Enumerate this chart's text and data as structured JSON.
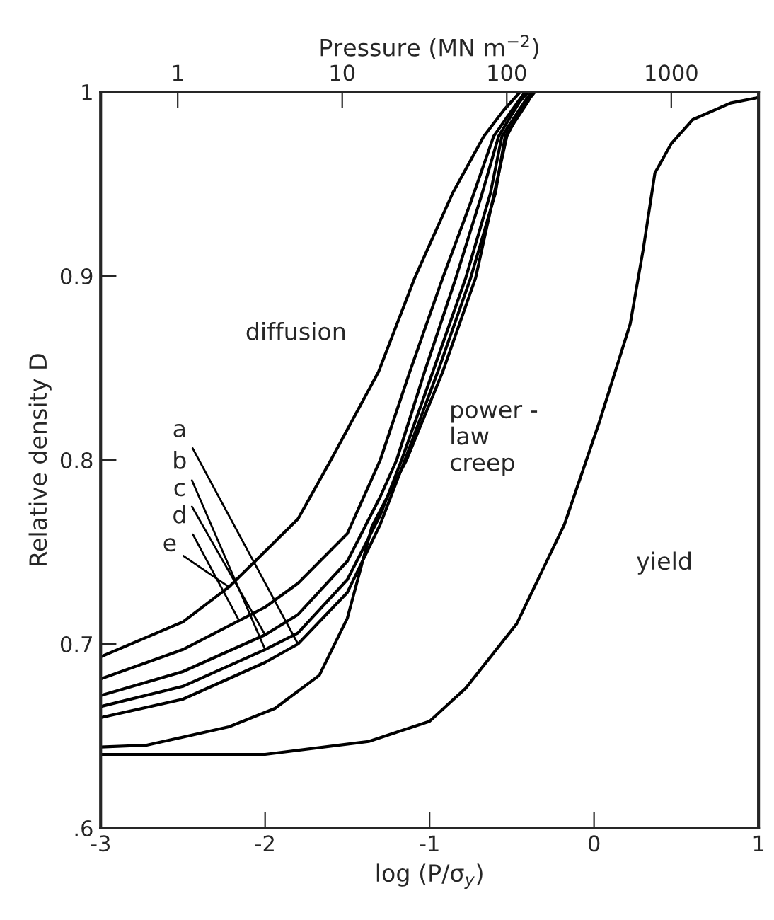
{
  "chart_data": {
    "type": "line",
    "xlabel": "log (P/σ$_{y}$)",
    "ylabel": "Relative density D",
    "x2label": "Pressure (MN m$^{−2}$)",
    "xlim": [
      -3,
      1
    ],
    "xticks": [
      -3,
      -2,
      -1,
      0,
      1
    ],
    "ylim": [
      0.6,
      1
    ],
    "yticks": [
      {
        "value": 0.6,
        "label": ".6"
      },
      0.7,
      0.8,
      0.9,
      1
    ],
    "x2lim": [
      0.34,
      3390
    ],
    "x2ticks": [
      1,
      10,
      100,
      1000
    ],
    "log": "x2",
    "grid": false,
    "legend": false,
    "marker": "none",
    "line_style": "solid",
    "series": [
      {
        "color": "#000000",
        "x": [
          -3,
          -2.5,
          -2.22,
          -1.97,
          -1.8,
          -1.6,
          -1.31,
          -1.09,
          -0.86,
          -0.67,
          -0.55,
          -0.45
        ],
        "values": [
          0.693,
          0.712,
          0.731,
          0.753,
          0.768,
          0.8,
          0.848,
          0.899,
          0.945,
          0.976,
          0.99,
          1.0
        ]
      },
      {
        "color": "#000000",
        "x": [
          -3,
          -2.5,
          -2.0,
          -1.8,
          -1.5,
          -1.3,
          -1.12,
          -0.92,
          -0.75,
          -0.61,
          -0.5,
          -0.42
        ],
        "values": [
          0.681,
          0.697,
          0.72,
          0.733,
          0.76,
          0.8,
          0.848,
          0.899,
          0.94,
          0.976,
          0.99,
          1.0
        ]
      },
      {
        "color": "#000000",
        "x": [
          -3,
          -2.5,
          -2,
          -1.8,
          -1.5,
          -1.3,
          -1.2,
          -1.03,
          -0.84,
          -0.68,
          -0.58,
          -0.45,
          -0.4
        ],
        "values": [
          0.672,
          0.685,
          0.705,
          0.716,
          0.745,
          0.78,
          0.8,
          0.848,
          0.899,
          0.945,
          0.976,
          0.995,
          1.0
        ]
      },
      {
        "color": "#000000",
        "x": [
          -3,
          -2.5,
          -2,
          -1.8,
          -1.5,
          -1.3,
          -1.17,
          -0.98,
          -0.78,
          -0.63,
          -0.56,
          -0.42,
          -0.38
        ],
        "values": [
          0.666,
          0.677,
          0.697,
          0.706,
          0.735,
          0.77,
          0.8,
          0.848,
          0.899,
          0.945,
          0.976,
          0.995,
          1.0
        ]
      },
      {
        "color": "#000000",
        "x": [
          -3,
          -2.5,
          -2,
          -1.8,
          -1.5,
          -1.3,
          -1.15,
          -0.95,
          -0.75,
          -0.6,
          -0.54,
          -0.4,
          -0.37
        ],
        "values": [
          0.66,
          0.67,
          0.69,
          0.7,
          0.728,
          0.765,
          0.8,
          0.848,
          0.899,
          0.945,
          0.976,
          0.995,
          1.0
        ]
      },
      {
        "color": "#000000",
        "x": [
          -3,
          -2.72,
          -2.22,
          -1.94,
          -1.67,
          -1.5,
          -1.35,
          -1.14,
          -0.92,
          -0.72,
          -0.53,
          -0.45,
          -0.36
        ],
        "values": [
          0.644,
          0.645,
          0.655,
          0.665,
          0.683,
          0.714,
          0.764,
          0.8,
          0.848,
          0.899,
          0.976,
          0.99,
          1.0
        ]
      },
      {
        "color": "#000000",
        "x": [
          -3,
          -2,
          -1.37,
          -1.0,
          -0.78,
          -0.47,
          -0.18,
          0.03,
          0.22,
          0.3,
          0.37,
          0.47,
          0.6,
          0.83,
          1.0
        ],
        "values": [
          0.64,
          0.64,
          0.647,
          0.658,
          0.676,
          0.711,
          0.765,
          0.82,
          0.874,
          0.915,
          0.956,
          0.972,
          0.985,
          0.994,
          0.997
        ]
      }
    ],
    "annotations": [
      {
        "text": "a",
        "x": -1.8,
        "y": 0.7
      },
      {
        "text": "b",
        "x": -2,
        "y": 0.697
      },
      {
        "text": "c",
        "x": -2,
        "y": 0.705
      },
      {
        "text": "d",
        "x": -2.16,
        "y": 0.713
      },
      {
        "text": "e",
        "x": -2.22,
        "y": 0.731
      },
      "diffusion",
      "power -\nlaw\ncreep",
      "yield"
    ]
  }
}
